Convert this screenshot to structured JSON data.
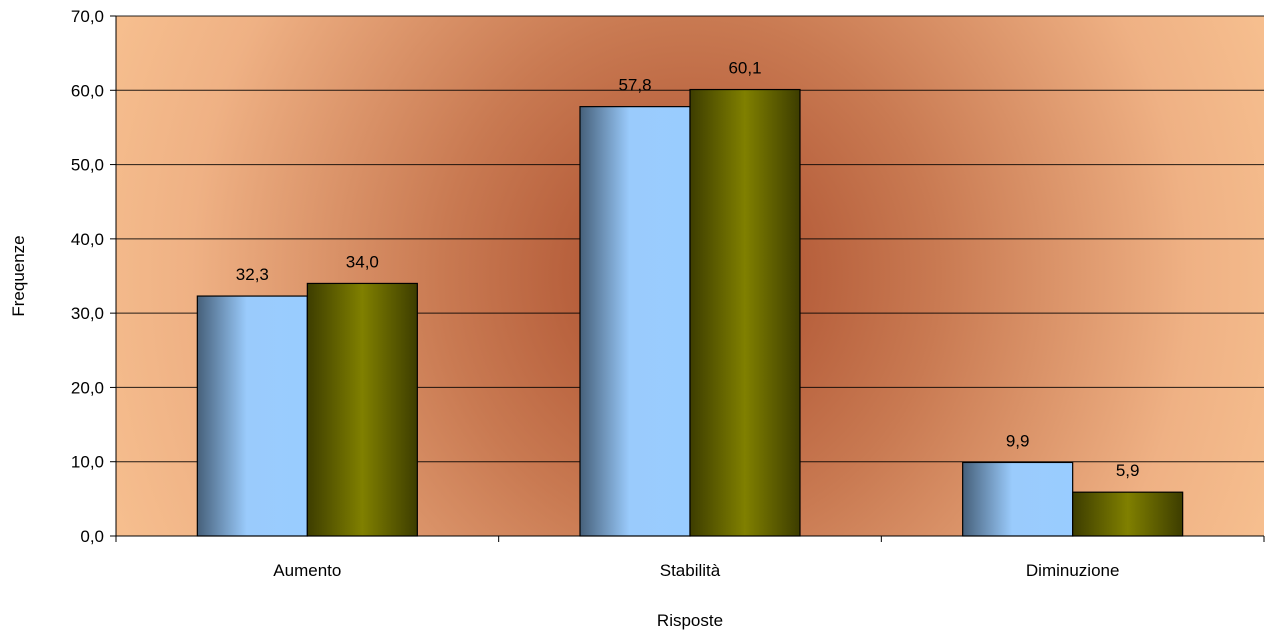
{
  "chart_data": {
    "type": "bar",
    "categories": [
      "Aumento",
      "Stabilità",
      "Diminuzione"
    ],
    "series": [
      {
        "values": [
          32.3,
          57.8,
          9.9
        ],
        "labels": [
          "32,3",
          "57,8",
          "9,9"
        ]
      },
      {
        "values": [
          34.0,
          60.1,
          5.9
        ],
        "labels": [
          "34,0",
          "60,1",
          "5,9"
        ]
      }
    ],
    "ylim": [
      0,
      70
    ],
    "yticks": [
      0,
      10,
      20,
      30,
      40,
      50,
      60,
      70
    ],
    "ytick_labels": [
      "0,0",
      "10,0",
      "20,0",
      "30,0",
      "40,0",
      "50,0",
      "60,0",
      "70,0"
    ],
    "xlabel": "Risposte",
    "ylabel": "Frequenze",
    "grid": true,
    "legend": false
  },
  "colors": {
    "series_1": "#99ccff",
    "series_2": "#808000",
    "background_light": "#fbc896",
    "background_dark": "#a84a2a"
  }
}
